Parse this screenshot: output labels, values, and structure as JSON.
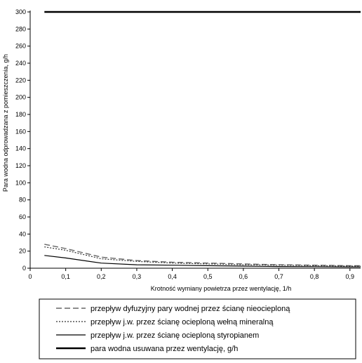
{
  "chart_data": {
    "type": "line",
    "title": "",
    "xlabel": "Krotność wymiany powietrza przez wentylację, 1/h",
    "ylabel": "Para wodna odprowadzana z pomieszczenia, g/h",
    "xlim": [
      0,
      0.93
    ],
    "ylim": [
      0,
      300
    ],
    "x_ticks": [
      0,
      0.1,
      0.2,
      0.3,
      0.4,
      0.5,
      0.6,
      0.7,
      0.8,
      0.9
    ],
    "x_tick_labels": [
      "0",
      "0,1",
      "0,2",
      "0,3",
      "0,4",
      "0,5",
      "0,6",
      "0,7",
      "0,8",
      "0,9"
    ],
    "y_ticks": [
      0,
      20,
      40,
      60,
      80,
      100,
      120,
      140,
      160,
      180,
      200,
      220,
      240,
      260,
      280,
      300
    ],
    "y_tick_labels": [
      "0",
      "20",
      "40",
      "60",
      "80",
      "100",
      "120",
      "140",
      "160",
      "180",
      "200",
      "220",
      "240",
      "260",
      "280",
      "300"
    ],
    "grid": false,
    "legend_position": "bottom",
    "series": [
      {
        "name": "przepływ dyfuzyjny pary wodnej przez ścianę nieocieploną",
        "style": "dashed",
        "color": "#666666",
        "x": [
          0.04,
          0.1,
          0.2,
          0.3,
          0.4,
          0.5,
          0.6,
          0.7,
          0.8,
          0.9,
          0.93
        ],
        "y": [
          28,
          23,
          13,
          9,
          7,
          6,
          5,
          4,
          3.5,
          3,
          3
        ]
      },
      {
        "name": "przepływ j.w. przez ścianę ocieploną wełną mineralną",
        "style": "dotted",
        "color": "#333333",
        "x": [
          0.04,
          0.1,
          0.2,
          0.3,
          0.4,
          0.5,
          0.6,
          0.7,
          0.8,
          0.9,
          0.93
        ],
        "y": [
          25,
          21,
          11,
          8,
          6,
          5,
          4,
          3.5,
          3,
          2.5,
          2.5
        ]
      },
      {
        "name": "przepływ j.w. przez ścianę ocieploną styropianem",
        "style": "solid-thin",
        "color": "#000000",
        "x": [
          0.04,
          0.1,
          0.2,
          0.3,
          0.4,
          0.5,
          0.6,
          0.7,
          0.8,
          0.9,
          0.93
        ],
        "y": [
          15,
          12,
          6,
          4,
          3.5,
          3,
          2.5,
          2,
          1.8,
          1.5,
          1.5
        ]
      },
      {
        "name": "para wodna usuwana przez wentylację, g/h",
        "style": "solid-thick",
        "color": "#000000",
        "x": [
          0.04,
          0.93
        ],
        "y": [
          300,
          300
        ]
      }
    ]
  }
}
